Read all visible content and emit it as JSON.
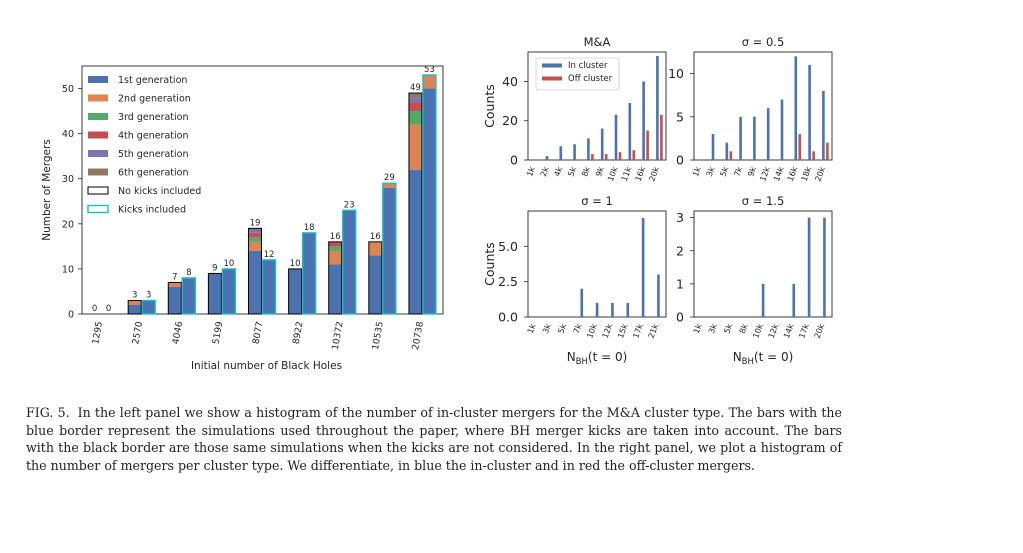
{
  "chart_data": [
    {
      "type": "bar",
      "stacked": true,
      "ylabel": "Number of Mergers",
      "xlabel": "Initial number of Black Holes",
      "yticks": [
        0,
        10,
        20,
        30,
        40,
        50
      ],
      "ylim": [
        0,
        55
      ],
      "categories": [
        "1295",
        "2570",
        "4046",
        "5199",
        "8077",
        "8922",
        "10372",
        "10535",
        "20738"
      ],
      "legend": [
        "1st generation",
        "2nd generation",
        "3rd generation",
        "4th generation",
        "5th generation",
        "6th generation",
        "No kicks included",
        "Kicks included"
      ],
      "legend_placement": "upper-left",
      "grid": false,
      "colors": [
        "#4c72b0",
        "#dd8452",
        "#55a868",
        "#c44e52",
        "#8172b3",
        "#937860"
      ],
      "no_kicks": {
        "totals": [
          0,
          3,
          7,
          9,
          19,
          10,
          16,
          16,
          49
        ],
        "generations": [
          [
            0,
            2,
            6,
            9,
            14,
            10,
            11,
            13,
            32
          ],
          [
            0,
            1,
            1,
            0,
            2,
            0,
            3,
            3,
            10
          ],
          [
            0,
            0,
            0,
            0,
            1,
            0,
            1,
            0,
            3
          ],
          [
            0,
            0,
            0,
            0,
            1,
            0,
            1,
            0,
            2
          ],
          [
            0,
            0,
            0,
            0,
            1,
            0,
            0,
            0,
            1
          ],
          [
            0,
            0,
            0,
            0,
            0,
            0,
            0,
            0,
            1
          ]
        ]
      },
      "kicks": {
        "totals": [
          0,
          3,
          8,
          10,
          12,
          18,
          23,
          29,
          53
        ],
        "generations": [
          [
            0,
            3,
            8,
            10,
            12,
            18,
            23,
            28,
            50
          ],
          [
            0,
            0,
            0,
            0,
            0,
            0,
            0,
            1,
            3
          ],
          [
            0,
            0,
            0,
            0,
            0,
            0,
            0,
            0,
            0
          ],
          [
            0,
            0,
            0,
            0,
            0,
            0,
            0,
            0,
            0
          ],
          [
            0,
            0,
            0,
            0,
            0,
            0,
            0,
            0,
            0
          ],
          [
            0,
            0,
            0,
            0,
            0,
            0,
            0,
            0,
            0
          ]
        ]
      }
    },
    {
      "type": "bar",
      "title": "M&A",
      "ylabel": "Counts",
      "yticks": [
        0,
        20,
        40
      ],
      "ylim": [
        0,
        55
      ],
      "legend": [
        "In cluster",
        "Off cluster"
      ],
      "legend_placement": "upper-left",
      "categories": [
        "1k",
        "2k",
        "4k",
        "5k",
        "8k",
        "9k",
        "10k",
        "11k",
        "16k",
        "20k"
      ],
      "series": [
        {
          "values": [
            0,
            2,
            7,
            8,
            11,
            16,
            23,
            29,
            40,
            53
          ]
        },
        {
          "values": [
            0,
            0,
            0,
            0,
            3,
            3,
            4,
            5,
            15,
            23
          ]
        }
      ]
    },
    {
      "type": "bar",
      "title": "σ = 0.5",
      "yticks": [
        0,
        5,
        10
      ],
      "ylim": [
        0,
        12.5
      ],
      "categories": [
        "1k",
        "3k",
        "5k",
        "7k",
        "9k",
        "12k",
        "14k",
        "16k",
        "18k",
        "20k"
      ],
      "series": [
        {
          "values": [
            0,
            3,
            2,
            5,
            5,
            6,
            7,
            12,
            11,
            8
          ]
        },
        {
          "values": [
            0,
            0,
            1,
            0,
            0,
            0,
            0,
            3,
            1,
            2
          ]
        }
      ]
    },
    {
      "type": "bar",
      "title": "σ = 1",
      "ylabel": "Counts",
      "xlabel": "N_BH(t = 0)",
      "yticks": [
        0.0,
        2.5,
        5.0
      ],
      "ylim": [
        0,
        7.5
      ],
      "categories": [
        "1k",
        "3k",
        "5k",
        "7k",
        "10k",
        "12k",
        "15k",
        "17k",
        "21k"
      ],
      "series": [
        {
          "values": [
            0,
            0,
            0,
            2,
            1,
            1,
            1,
            7,
            3
          ]
        }
      ]
    },
    {
      "type": "bar",
      "title": "σ = 1.5",
      "xlabel": "N_BH(t = 0)",
      "yticks": [
        0,
        1,
        2,
        3
      ],
      "ylim": [
        0,
        3.2
      ],
      "categories": [
        "1k",
        "3k",
        "5k",
        "8k",
        "10k",
        "12k",
        "14k",
        "17k",
        "20k"
      ],
      "series": [
        {
          "values": [
            0,
            0,
            0,
            0,
            1,
            0,
            1,
            3,
            3
          ]
        }
      ]
    }
  ],
  "caption": {
    "label": "FIG. 5.",
    "text": "In the left panel we show a histogram of the number of in-cluster mergers for the M&A cluster type. The bars with the blue border represent the simulations used throughout the paper, where BH merger kicks are taken into account. The bars with the black border are those same simulations when the kicks are not considered. In the right panel, we plot a histogram of the number of mergers per cluster type. We differentiate, in blue the in-cluster and in red the off-cluster mergers."
  }
}
